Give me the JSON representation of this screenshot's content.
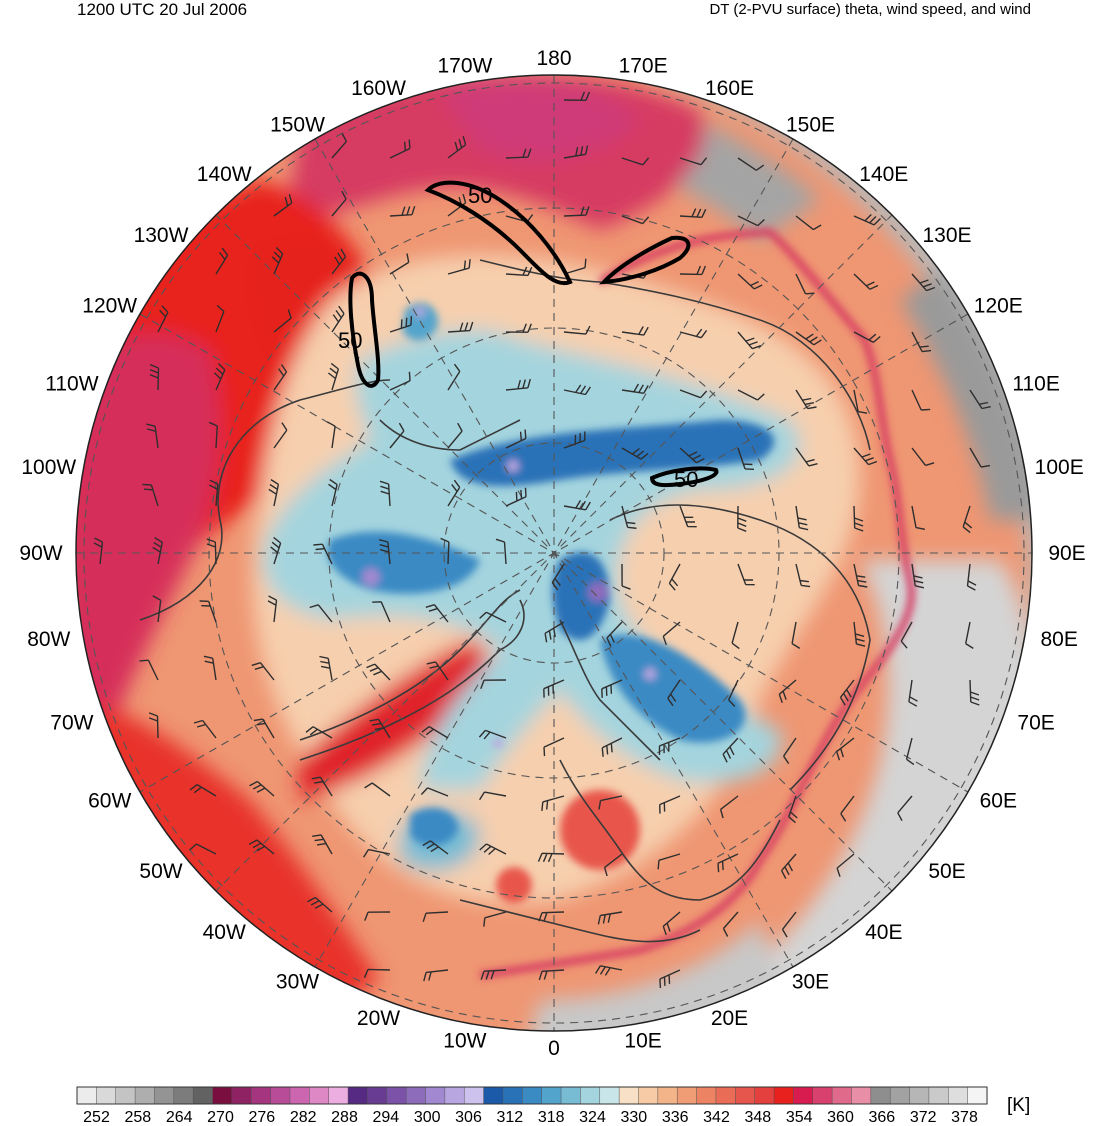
{
  "header": {
    "time_label": "1200 UTC 20 Jul 2006",
    "field_label": "DT (2-PVU surface) theta, wind speed, and wind"
  },
  "map": {
    "projection": "north-polar-stereographic",
    "longitude_labels": [
      {
        "lon": 180,
        "text": "180"
      },
      {
        "lon": 170,
        "text": "170E"
      },
      {
        "lon": 160,
        "text": "160E"
      },
      {
        "lon": 150,
        "text": "150E"
      },
      {
        "lon": 140,
        "text": "140E"
      },
      {
        "lon": 130,
        "text": "130E"
      },
      {
        "lon": 120,
        "text": "120E"
      },
      {
        "lon": 110,
        "text": "110E"
      },
      {
        "lon": 100,
        "text": "100E"
      },
      {
        "lon": 90,
        "text": "90E"
      },
      {
        "lon": 80,
        "text": "80E"
      },
      {
        "lon": 70,
        "text": "70E"
      },
      {
        "lon": 60,
        "text": "60E"
      },
      {
        "lon": 50,
        "text": "50E"
      },
      {
        "lon": 40,
        "text": "40E"
      },
      {
        "lon": 30,
        "text": "30E"
      },
      {
        "lon": 20,
        "text": "20E"
      },
      {
        "lon": 10,
        "text": "10E"
      },
      {
        "lon": 0,
        "text": "0"
      },
      {
        "lon": -10,
        "text": "10W"
      },
      {
        "lon": -20,
        "text": "20W"
      },
      {
        "lon": -30,
        "text": "30W"
      },
      {
        "lon": -40,
        "text": "40W"
      },
      {
        "lon": -50,
        "text": "50W"
      },
      {
        "lon": -60,
        "text": "60W"
      },
      {
        "lon": -70,
        "text": "70W"
      },
      {
        "lon": -80,
        "text": "80W"
      },
      {
        "lon": -90,
        "text": "90W"
      },
      {
        "lon": -100,
        "text": "100W"
      },
      {
        "lon": -110,
        "text": "110W"
      },
      {
        "lon": -120,
        "text": "120W"
      },
      {
        "lon": -130,
        "text": "130W"
      },
      {
        "lon": -140,
        "text": "140W"
      },
      {
        "lon": -150,
        "text": "150W"
      },
      {
        "lon": -160,
        "text": "160W"
      },
      {
        "lon": -170,
        "text": "170W"
      }
    ],
    "wind_speed_contours": [
      {
        "value": "50",
        "region": "north-pacific"
      },
      {
        "value": "50",
        "region": "alaska-yukon"
      },
      {
        "value": "50",
        "region": "siberia"
      }
    ]
  },
  "colorbar": {
    "unit": "[K]",
    "tick_labels": [
      "252",
      "258",
      "264",
      "270",
      "276",
      "282",
      "288",
      "294",
      "300",
      "306",
      "312",
      "318",
      "324",
      "330",
      "336",
      "342",
      "348",
      "354",
      "360",
      "366",
      "372",
      "378"
    ],
    "colors": [
      "#ececec",
      "#d9d9d9",
      "#c4c4c4",
      "#aeaeae",
      "#949494",
      "#7c7c7c",
      "#626262",
      "#7a0f3f",
      "#8e2263",
      "#a4357e",
      "#b84c98",
      "#cc66b0",
      "#de88c6",
      "#ecaee0",
      "#562a82",
      "#673c92",
      "#7b52a8",
      "#8e6cbc",
      "#a288d0",
      "#b8a6e0",
      "#cdc2ee",
      "#1a5aa8",
      "#2a72b8",
      "#3a8ac4",
      "#52a4cc",
      "#78bcd4",
      "#a4d4de",
      "#c8e6ea",
      "#f8e0c6",
      "#f6cba6",
      "#f3b48a",
      "#f09c74",
      "#ec8464",
      "#e86c56",
      "#e6564c",
      "#e4403e",
      "#e8201e",
      "#d81c50",
      "#d8406e",
      "#e06a8a",
      "#e88ea6",
      "#8e8e8e",
      "#a2a2a2",
      "#b6b6b6",
      "#cacaca",
      "#dedede",
      "#f4f4f4"
    ]
  }
}
